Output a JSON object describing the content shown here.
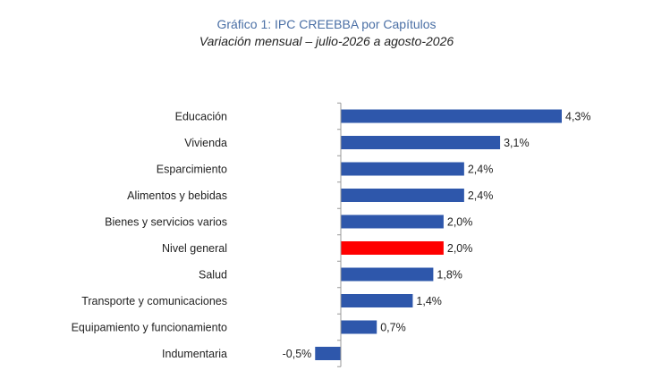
{
  "chart_data": {
    "type": "bar",
    "orientation": "horizontal",
    "title": "Gráfico 1: IPC CREEBBA por Capítulos",
    "subtitle": "Variación mensual – julio-2026 a agosto-2026",
    "categories": [
      "Educación",
      "Vivienda",
      "Esparcimiento",
      "Alimentos y bebidas",
      "Bienes y servicios varios",
      "Nivel general",
      "Salud",
      "Transporte y comunicaciones",
      "Equipamiento y funcionamiento",
      "Indumentaria"
    ],
    "values": [
      4.3,
      3.1,
      2.4,
      2.4,
      2.0,
      2.0,
      1.8,
      1.4,
      0.7,
      -0.5
    ],
    "value_labels": [
      "4,3%",
      "3,1%",
      "2,4%",
      "2,4%",
      "2,0%",
      "2,0%",
      "1,8%",
      "1,4%",
      "0,7%",
      "-0,5%"
    ],
    "colors": {
      "default": "#2e57ab",
      "highlight": "#ff0000",
      "title": "#4a6fa5",
      "axis": "#999999"
    },
    "highlight_category": "Nivel general",
    "xlim": [
      -0.5,
      4.3
    ],
    "grid": false,
    "legend": "none"
  }
}
